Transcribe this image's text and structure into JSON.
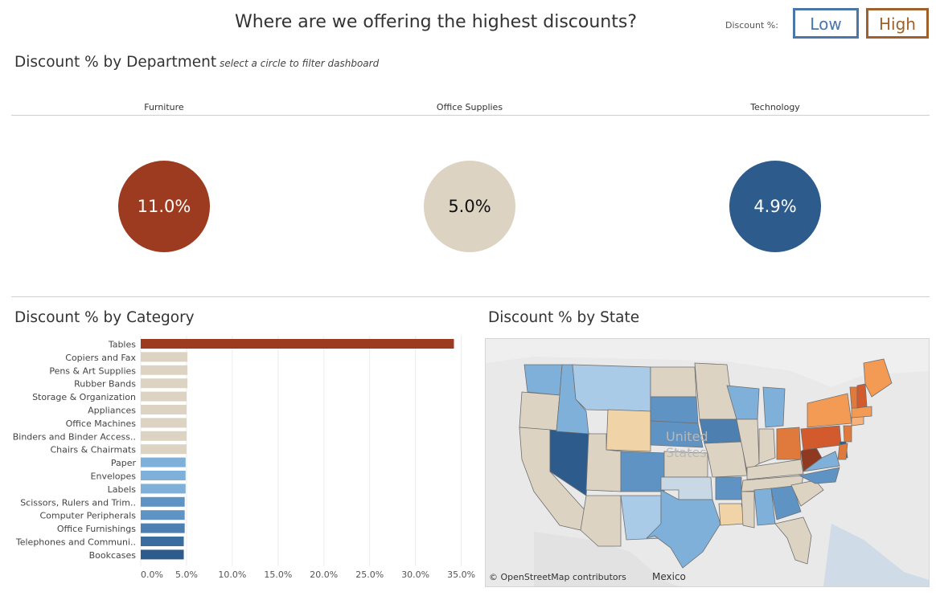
{
  "header": {
    "title": "Where are we offering the highest discounts?",
    "discount_label": "Discount %:",
    "low_label": "Low",
    "high_label": "High"
  },
  "colors": {
    "high": "#9c3b1f",
    "mid": "#dcd3c3",
    "low": "#2c5b8c"
  },
  "department": {
    "title": "Discount % by Department",
    "hint": "select a circle to filter dashboard",
    "items": [
      {
        "name": "Furniture",
        "value": 11.0,
        "label": "11.0%",
        "color": "#9c3b1f",
        "text_color": "#ffffff"
      },
      {
        "name": "Office Supplies",
        "value": 5.0,
        "label": "5.0%",
        "color": "#dcd3c3",
        "text_color": "#111111"
      },
      {
        "name": "Technology",
        "value": 4.9,
        "label": "4.9%",
        "color": "#2c5b8c",
        "text_color": "#ffffff"
      }
    ]
  },
  "category": {
    "title": "Discount % by Category"
  },
  "state_map": {
    "title": "Discount % by State",
    "country_label_1": "United",
    "country_label_2": "States",
    "mexico_label": "Mexico",
    "credit": "© OpenStreetMap contributors"
  },
  "chart_data": {
    "type": "bar",
    "orientation": "horizontal",
    "categories": [
      "Tables",
      "Copiers and Fax",
      "Pens & Art Supplies",
      "Rubber Bands",
      "Storage & Organization",
      "Appliances",
      "Office Machines",
      "Binders and Binder Access..",
      "Chairs & Chairmats",
      "Paper",
      "Envelopes",
      "Labels",
      "Scissors, Rulers and Trim..",
      "Computer Peripherals",
      "Office Furnishings",
      "Telephones and Communi..",
      "Bookcases"
    ],
    "values": [
      34.2,
      5.1,
      5.1,
      5.1,
      5.0,
      5.0,
      5.0,
      5.0,
      5.0,
      4.9,
      4.9,
      4.9,
      4.8,
      4.8,
      4.8,
      4.7,
      4.7
    ],
    "colors": [
      "#9c3b1f",
      "#dcd3c3",
      "#dcd3c3",
      "#dcd3c3",
      "#dcd3c3",
      "#dcd3c3",
      "#dcd3c3",
      "#dcd3c3",
      "#dcd3c3",
      "#7fb0d9",
      "#7fb0d9",
      "#7fb0d9",
      "#5e93c4",
      "#5e93c4",
      "#4d7fb0",
      "#3a6d9e",
      "#2c5b8c"
    ],
    "xlim": [
      0,
      36
    ],
    "xticks": [
      "0.0%",
      "5.0%",
      "10.0%",
      "15.0%",
      "20.0%",
      "25.0%",
      "30.0%",
      "35.0%"
    ],
    "xtick_values": [
      0,
      5,
      10,
      15,
      20,
      25,
      30,
      35
    ],
    "grid": true
  }
}
